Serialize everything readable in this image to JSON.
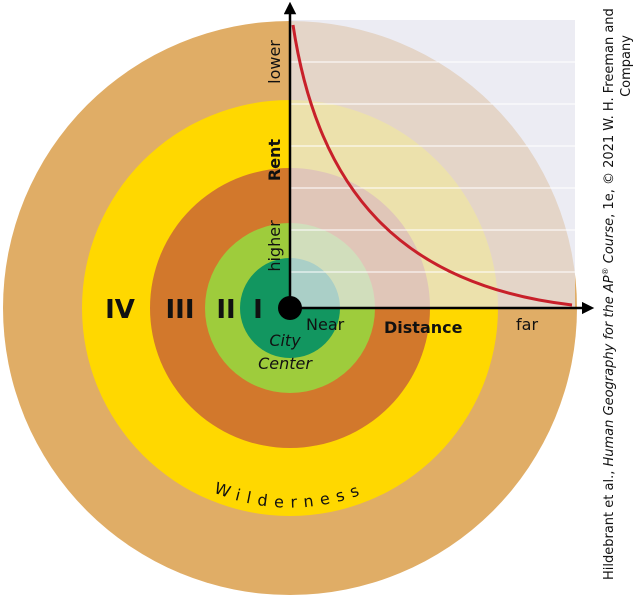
{
  "rings": {
    "I": "I",
    "II": "II",
    "III": "III",
    "IV": "IV"
  },
  "center": {
    "line1": "City",
    "line2": "Center"
  },
  "x_axis": {
    "near": "Near",
    "title": "Distance",
    "far": "far"
  },
  "y_axis": {
    "low": "lower",
    "title": "Rent",
    "high": "higher"
  },
  "outer": "Wilderness",
  "credit": {
    "line1": [
      "Hildebrant et al., ",
      "Human Geography for the AP",
      "®",
      " Course",
      ", 1e, © 2021 W. H. Freeman and"
    ],
    "line2": "Company"
  }
}
